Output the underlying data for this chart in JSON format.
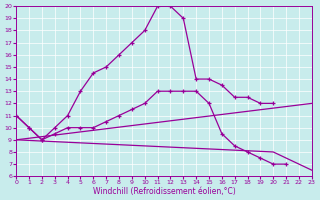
{
  "xlabel": "Windchill (Refroidissement éolien,°C)",
  "xlim": [
    0,
    23
  ],
  "ylim": [
    6,
    20
  ],
  "background_color": "#c8ecec",
  "line_color": "#990099",
  "grid_color": "#ffffff",
  "curve1": {
    "x": [
      0,
      1,
      2,
      3,
      4,
      5,
      6,
      7,
      8,
      9,
      10,
      11,
      12,
      13,
      14,
      15,
      16,
      17,
      18,
      19,
      20
    ],
    "y": [
      11.0,
      10.0,
      9.0,
      10.0,
      11.0,
      13.0,
      14.5,
      15.0,
      16.0,
      17.0,
      18.0,
      20.0,
      20.0,
      19.0,
      14.0,
      14.0,
      13.5,
      12.5,
      12.5,
      12.0,
      12.0
    ]
  },
  "curve2": {
    "x": [
      0,
      1,
      2,
      3,
      4,
      5,
      6,
      7,
      8,
      9,
      10,
      11,
      12,
      13,
      14,
      15,
      16,
      17,
      18,
      19,
      20,
      21
    ],
    "y": [
      11.0,
      10.0,
      9.0,
      9.5,
      10.0,
      10.0,
      10.0,
      10.5,
      11.0,
      11.5,
      12.0,
      13.0,
      13.0,
      13.0,
      13.0,
      12.0,
      9.5,
      8.5,
      8.0,
      7.5,
      7.0,
      7.0
    ]
  },
  "line3": {
    "x": [
      0,
      23
    ],
    "y": [
      9.0,
      12.0
    ]
  },
  "line4": {
    "x": [
      0,
      20,
      21,
      22,
      23
    ],
    "y": [
      9.0,
      8.0,
      7.5,
      7.0,
      6.5
    ]
  }
}
